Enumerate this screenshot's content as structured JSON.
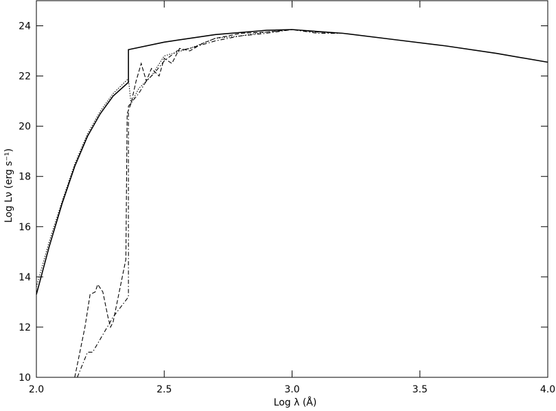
{
  "chart_data": {
    "type": "line",
    "xlabel": "Log   λ  (Å)",
    "ylabel": "Log  Lν  (erg s⁻¹)",
    "xlim": [
      2.0,
      4.0
    ],
    "ylim": [
      10,
      25
    ],
    "xticks": [
      {
        "value": 2,
        "label": "2.0"
      },
      {
        "value": 2.5,
        "label": "2.5"
      },
      {
        "value": 3,
        "label": "3.0"
      },
      {
        "value": 3.5,
        "label": "3.5"
      },
      {
        "value": 4,
        "label": "4.0"
      }
    ],
    "yticks": [
      10,
      12,
      14,
      16,
      18,
      20,
      22,
      24
    ],
    "series": [
      {
        "color": "#000000",
        "dash": "solid",
        "x": [
          2.0,
          2.05,
          2.1,
          2.15,
          2.2,
          2.25,
          2.3,
          2.36,
          2.36,
          2.5,
          2.7,
          2.9,
          3.0,
          3.2,
          3.4,
          3.6,
          3.8,
          4.0
        ],
        "values": [
          13.3,
          15.2,
          16.9,
          18.4,
          19.6,
          20.5,
          21.2,
          21.75,
          23.05,
          23.35,
          23.65,
          23.82,
          23.85,
          23.7,
          23.45,
          23.2,
          22.9,
          22.55
        ]
      },
      {
        "color": "#000000",
        "dash": "dotted",
        "x": [
          2.0,
          2.05,
          2.1,
          2.15,
          2.2,
          2.25,
          2.3,
          2.36,
          2.37,
          2.4,
          2.45,
          2.5,
          2.6,
          2.7,
          2.8,
          2.9,
          3.0,
          3.1,
          3.2
        ],
        "values": [
          13.6,
          15.4,
          17.0,
          18.5,
          19.7,
          20.6,
          21.3,
          21.9,
          20.9,
          21.5,
          22.0,
          22.8,
          23.1,
          23.5,
          23.6,
          23.75,
          23.85,
          23.75,
          23.7
        ]
      },
      {
        "color": "#000000",
        "dash": "dashdot",
        "x": [
          2.16,
          2.2,
          2.22,
          2.3,
          2.36,
          2.36,
          2.4,
          2.43,
          2.46,
          2.5,
          2.55,
          2.6,
          2.7,
          2.8,
          2.9,
          3.0,
          3.1,
          3.2
        ],
        "values": [
          10.0,
          11.0,
          11.0,
          12.4,
          13.2,
          20.8,
          21.3,
          21.8,
          22.1,
          22.6,
          23.0,
          23.1,
          23.4,
          23.6,
          23.7,
          23.85,
          23.7,
          23.7
        ]
      },
      {
        "color": "#000000",
        "dash": "dashed",
        "x": [
          2.15,
          2.19,
          2.21,
          2.23,
          2.24,
          2.26,
          2.28,
          2.29,
          2.3,
          2.35,
          2.355,
          2.37,
          2.39,
          2.41,
          2.43,
          2.45,
          2.48,
          2.5,
          2.53,
          2.56,
          2.6,
          2.65,
          2.7,
          2.8,
          2.9,
          3.0,
          3.1,
          3.2
        ],
        "values": [
          10.0,
          12.0,
          13.3,
          13.4,
          13.7,
          13.4,
          12.4,
          12.0,
          12.2,
          14.7,
          20.5,
          20.9,
          21.8,
          22.5,
          21.8,
          22.3,
          22.0,
          22.7,
          22.5,
          23.1,
          23.0,
          23.3,
          23.5,
          23.7,
          23.75,
          23.85,
          23.75,
          23.7
        ]
      }
    ]
  }
}
